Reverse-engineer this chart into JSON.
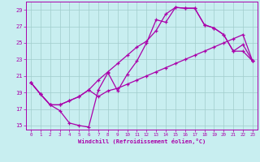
{
  "xlabel": "Windchill (Refroidissement éolien,°C)",
  "bg_color": "#c8eef0",
  "grid_color": "#a0cccc",
  "line_color": "#aa00aa",
  "spine_color": "#aa00aa",
  "xlim": [
    -0.5,
    23.5
  ],
  "ylim": [
    14.5,
    30
  ],
  "xticks": [
    0,
    1,
    2,
    3,
    4,
    5,
    6,
    7,
    8,
    9,
    10,
    11,
    12,
    13,
    14,
    15,
    16,
    17,
    18,
    19,
    20,
    21,
    22,
    23
  ],
  "yticks": [
    15,
    17,
    19,
    21,
    23,
    25,
    27,
    29
  ],
  "line1_x": [
    0,
    1,
    2,
    3,
    4,
    5,
    6,
    7,
    8,
    9,
    10,
    11,
    12,
    13,
    14,
    15,
    16,
    17,
    18,
    19,
    20,
    21,
    22,
    23
  ],
  "line1_y": [
    20.2,
    18.8,
    17.5,
    16.8,
    15.3,
    15.0,
    14.8,
    19.3,
    21.4,
    19.2,
    21.2,
    22.8,
    25.0,
    27.8,
    27.5,
    29.3,
    29.2,
    29.2,
    27.2,
    26.8,
    26.0,
    24.0,
    24.0,
    22.8
  ],
  "line2_x": [
    0,
    1,
    2,
    3,
    4,
    5,
    6,
    7,
    8,
    9,
    10,
    11,
    12,
    13,
    14,
    15,
    16,
    17,
    18,
    19,
    20,
    21,
    22,
    23
  ],
  "line2_y": [
    20.2,
    18.8,
    17.5,
    17.5,
    18.0,
    18.5,
    19.3,
    18.5,
    19.2,
    19.5,
    20.0,
    20.5,
    21.0,
    21.5,
    22.0,
    22.5,
    23.0,
    23.5,
    24.0,
    24.5,
    25.0,
    25.5,
    26.0,
    22.8
  ],
  "line3_x": [
    0,
    1,
    2,
    3,
    4,
    5,
    6,
    7,
    8,
    9,
    10,
    11,
    12,
    13,
    14,
    15,
    16,
    17,
    18,
    19,
    20,
    21,
    22,
    23
  ],
  "line3_y": [
    20.2,
    18.8,
    17.5,
    17.5,
    18.0,
    18.5,
    19.3,
    20.5,
    21.5,
    22.5,
    23.5,
    24.5,
    25.2,
    26.5,
    28.5,
    29.3,
    29.2,
    29.2,
    27.2,
    26.8,
    26.0,
    24.0,
    24.8,
    22.8
  ]
}
